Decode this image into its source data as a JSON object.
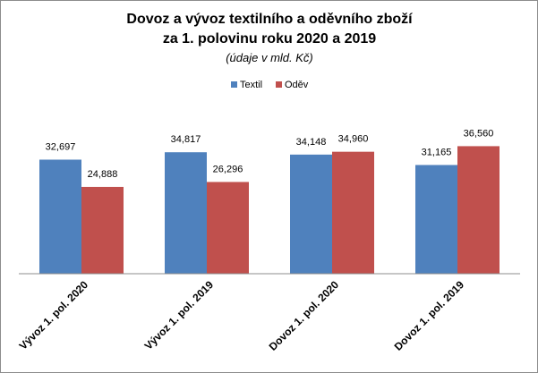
{
  "chart_data": {
    "type": "bar",
    "title_line1": "Dovoz a vývoz textilního a oděvního zboží",
    "title_line2": "za 1. polovinu roku 2020 a 2019",
    "subtitle": "(údaje v mld. Kč)",
    "categories": [
      "Vývoz 1. pol. 2020",
      "Vývoz 1. pol. 2019",
      "Dovoz 1. pol. 2020",
      "Dovoz 1. pol. 2019"
    ],
    "series": [
      {
        "name": "Textil",
        "color": "#4F81BD",
        "values": [
          32.697,
          34.817,
          34.148,
          31.165
        ],
        "labels": [
          "32,697",
          "34,817",
          "34,148",
          "31,165"
        ]
      },
      {
        "name": "Oděv",
        "color": "#C0504D",
        "values": [
          24.888,
          26.296,
          34.96,
          36.56
        ],
        "labels": [
          "24,888",
          "26,296",
          "34,960",
          "36,560"
        ]
      }
    ],
    "ylim": [
      0,
      45
    ],
    "legend_position": "top",
    "grid": false
  }
}
